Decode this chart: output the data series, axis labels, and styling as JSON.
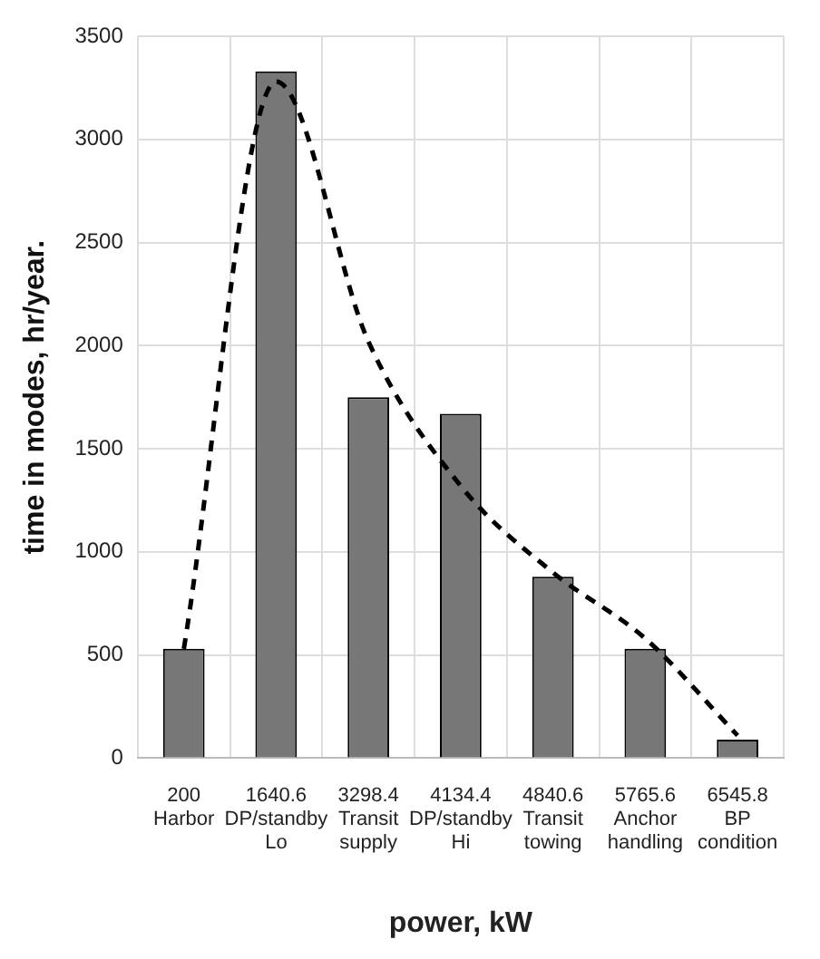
{
  "chart_data": {
    "type": "bar",
    "xlabel": "power, kW",
    "ylabel": "time in modes, hr/year.",
    "categories": [
      "200\nHarbor",
      "1640.6\nDP/standby\nLo",
      "3298.4\nTransit\nsupply",
      "4134.4\nDP/standby\nHi",
      "4840.6\nTransit\ntowing",
      "5765.6\nAnchor\nhandling",
      "6545.8\nBP\ncondition"
    ],
    "series": [
      {
        "color": "#777777",
        "values": [
          530,
          3330,
          1750,
          1670,
          880,
          530,
          90
        ]
      },
      {
        "type": "line",
        "color": "#000000",
        "line_style": "dashed",
        "marker": "none",
        "values": [
          530,
          3280,
          2020,
          1320,
          900,
          580,
          110
        ]
      }
    ],
    "ylim": [
      0,
      3500
    ],
    "yticks": [
      0,
      500,
      1000,
      1500,
      2000,
      2500,
      3000,
      3500
    ],
    "grid": true,
    "legend": false
  }
}
